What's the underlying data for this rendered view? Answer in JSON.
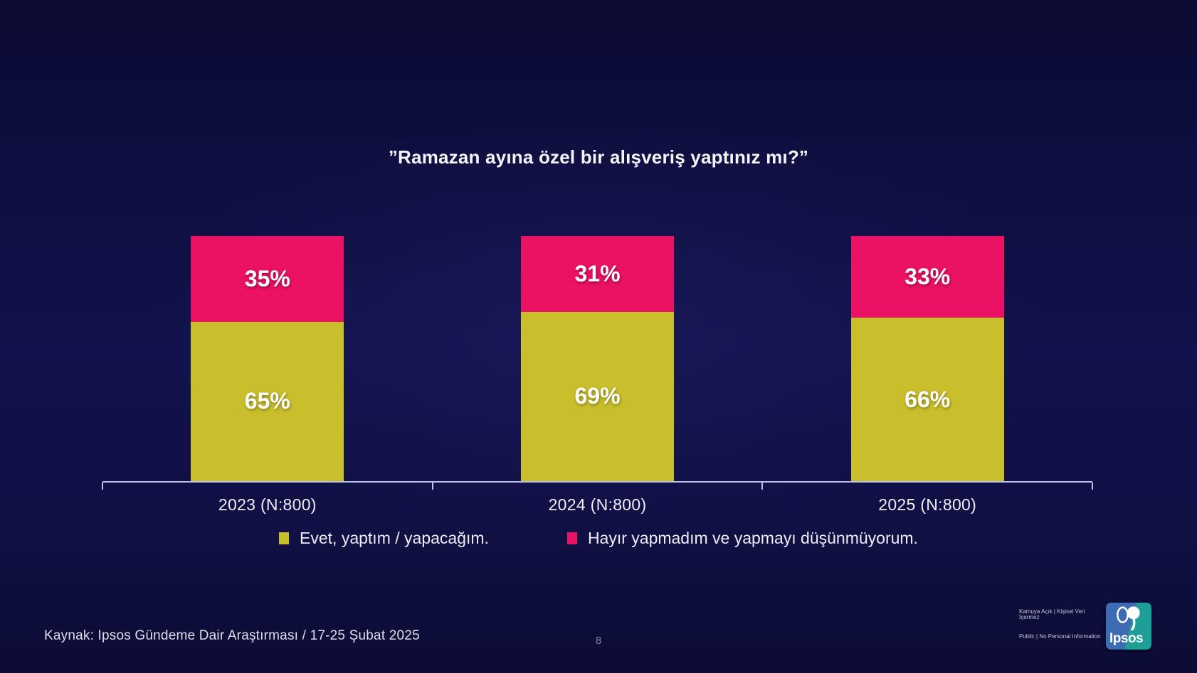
{
  "title": "”Ramazan ayına özel bir alışveriş yaptınız mı?”",
  "chart_data": {
    "type": "bar",
    "subtype": "100-percent-stacked-column",
    "title": "”Ramazan ayına özel bir alışveriş yaptınız mı?”",
    "categories": [
      "2023 (N:800)",
      "2024 (N:800)",
      "2025 (N:800)"
    ],
    "series": [
      {
        "name": "Evet, yaptım / yapacağım.",
        "color": "#c9bf2c",
        "values": [
          65,
          69,
          66
        ]
      },
      {
        "name": "Hayır yapmadım ve yapmayı düşünmüyorum.",
        "color": "#eb1164",
        "values": [
          35,
          31,
          33
        ]
      }
    ],
    "value_suffix": "%",
    "xlabel": "",
    "ylabel": "",
    "grid": false,
    "legend_position": "bottom",
    "axis_color": "#bcc2e8"
  },
  "footer": {
    "source": "Kaynak: Ipsos Gündeme Dair Araştırması / 17-25 Şubat 2025",
    "page_number": "8",
    "disclaimer_line1": "Kamuya Açık | Kişisel Veri İçermez",
    "disclaimer_line2": "Public | No Personal Information"
  },
  "logo": {
    "text": "Ipsos",
    "blue": "#3e6cb2",
    "teal": "#1e9e96"
  }
}
